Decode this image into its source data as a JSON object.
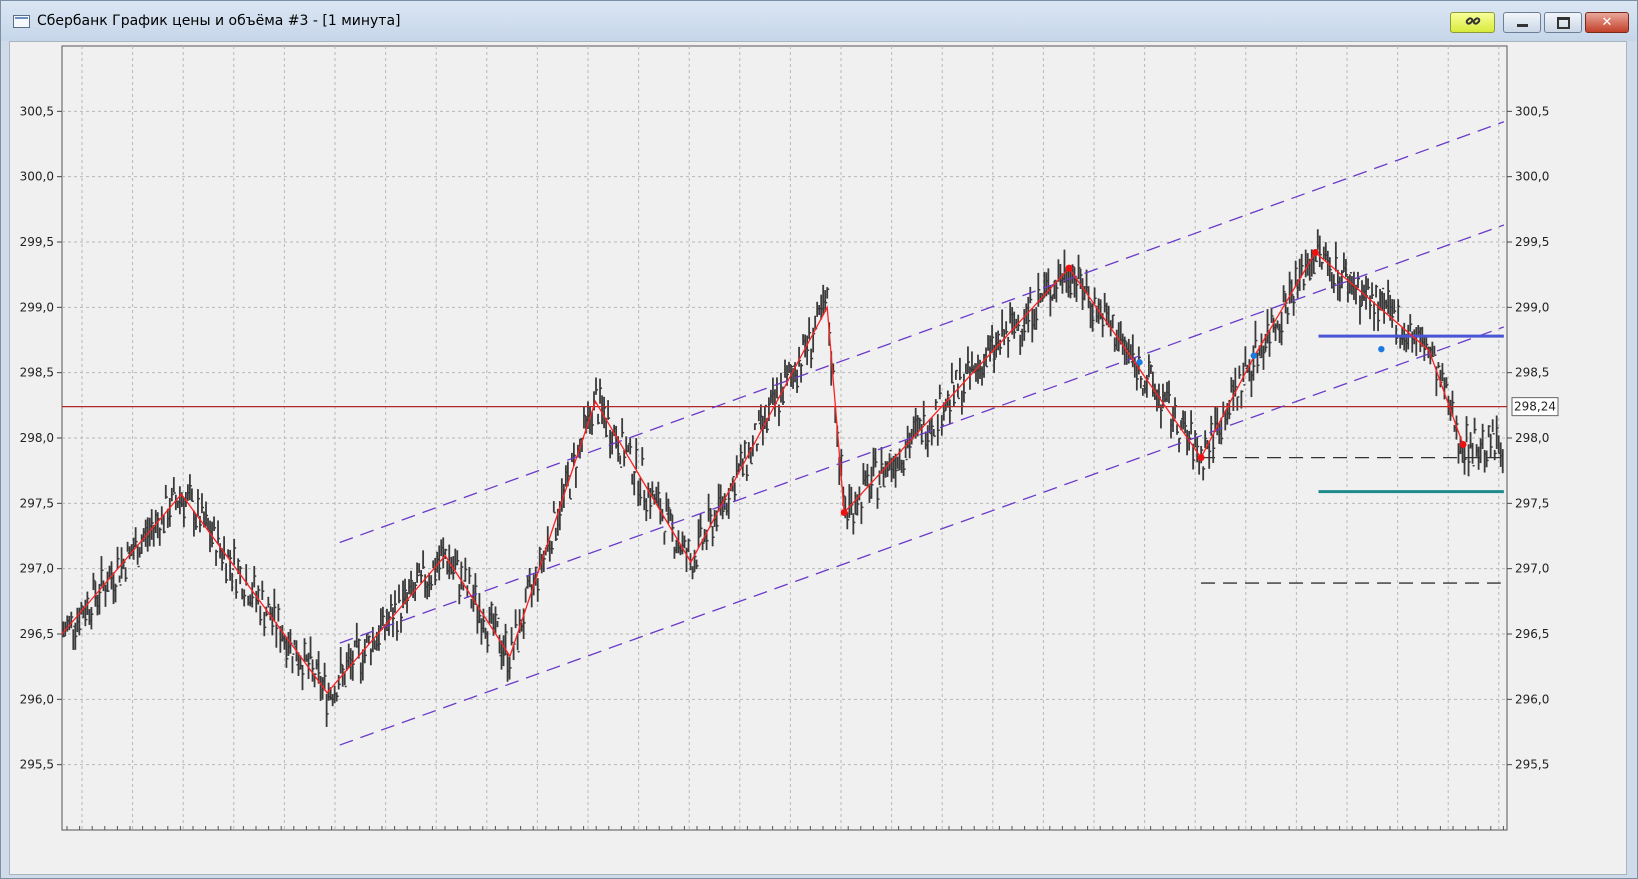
{
  "window": {
    "title": "Сбербанк График цены и объёма #3 - [1 минута]",
    "buttons": {
      "link_icon": "link-icon",
      "minimize_icon": "minimize-icon",
      "maximize_icon": "restore-icon",
      "close_icon": "close-icon"
    },
    "link_color": "#e2f05a",
    "close_color": "#c94a33"
  },
  "chart_data": {
    "type": "line",
    "title": "",
    "ylim": [
      295.0,
      301.0
    ],
    "y_ticks": [
      "300,5",
      "300,0",
      "299,5",
      "299,0",
      "298,5",
      "298,0",
      "297,5",
      "297,0",
      "296,5",
      "296,0",
      "295,5"
    ],
    "grid": true,
    "price_label": "298,24",
    "current_price": 298.24,
    "zigzag": [
      {
        "x": 0,
        "y": 296.5
      },
      {
        "x": 190,
        "y": 297.57
      },
      {
        "x": 422,
        "y": 296.05
      },
      {
        "x": 610,
        "y": 297.1
      },
      {
        "x": 713,
        "y": 296.33
      },
      {
        "x": 849,
        "y": 298.28
      },
      {
        "x": 1001,
        "y": 297.05
      },
      {
        "x": 1218,
        "y": 299.0
      },
      {
        "x": 1245,
        "y": 297.43
      },
      {
        "x": 1603,
        "y": 299.3
      },
      {
        "x": 1813,
        "y": 297.85
      },
      {
        "x": 1897,
        "y": 298.62
      },
      {
        "x": 1995,
        "y": 299.42
      },
      {
        "x": 2176,
        "y": 298.67
      },
      {
        "x": 2230,
        "y": 297.95
      }
    ],
    "pivots_red": [
      {
        "x": 1245,
        "y": 297.43
      },
      {
        "x": 1603,
        "y": 299.3
      },
      {
        "x": 1813,
        "y": 297.85
      },
      {
        "x": 1995,
        "y": 299.42
      },
      {
        "x": 2230,
        "y": 297.95
      }
    ],
    "pivots_blue": [
      {
        "x": 1715,
        "y": 298.58
      },
      {
        "x": 1897,
        "y": 298.63
      },
      {
        "x": 2100,
        "y": 298.68
      }
    ],
    "channels": [
      {
        "x1": 442,
        "y1": 297.2,
        "x2": 2295,
        "y2": 300.42
      },
      {
        "x1": 442,
        "y1": 296.43,
        "x2": 2295,
        "y2": 299.63
      },
      {
        "x1": 442,
        "y1": 295.65,
        "x2": 2295,
        "y2": 298.85
      }
    ],
    "hlines": [
      {
        "name": "blue-level",
        "y": 298.78,
        "x1": 2000,
        "x2": 2295,
        "color": "#4a55d6",
        "width": 3,
        "dash": ""
      },
      {
        "name": "teal-level",
        "y": 297.59,
        "x1": 2000,
        "x2": 2295,
        "color": "#1f8a8a",
        "width": 3,
        "dash": ""
      },
      {
        "name": "dash-level-upper",
        "y": 297.85,
        "x1": 1813,
        "x2": 2290,
        "color": "#333333",
        "width": 1.3,
        "dash": "14,8"
      },
      {
        "name": "dash-level-lower",
        "y": 296.89,
        "x1": 1813,
        "x2": 2290,
        "color": "#333333",
        "width": 1.3,
        "dash": "14,8"
      }
    ],
    "colors": {
      "bars": "#3a3a3a",
      "zigzag": "#ff2020",
      "channel": "#6a3ac8",
      "price_line": "#b02828",
      "grid": "#b8b8b8",
      "background": "#f0f0f0"
    }
  }
}
